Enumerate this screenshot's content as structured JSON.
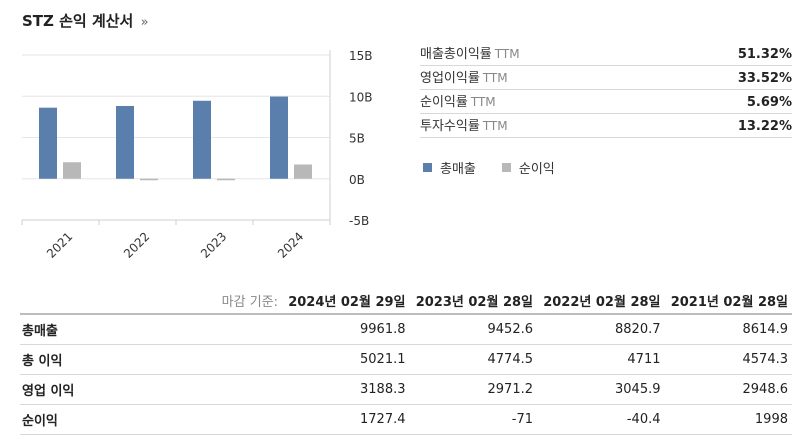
{
  "header": {
    "title": "STZ 손익 계산서",
    "chevron": "»"
  },
  "ratios": [
    {
      "label": "매출총이익률",
      "suffix": "TTM",
      "value": "51.32%"
    },
    {
      "label": "영업이익률",
      "suffix": "TTM",
      "value": "33.52%"
    },
    {
      "label": "순이익률",
      "suffix": "TTM",
      "value": "5.69%"
    },
    {
      "label": "투자수익률",
      "suffix": "TTM",
      "value": "13.22%"
    }
  ],
  "legend": [
    {
      "label": "총매출",
      "color": "#5b7fac"
    },
    {
      "label": "순이익",
      "color": "#b8b8b8"
    }
  ],
  "chart_data": {
    "type": "bar",
    "categories": [
      "2021",
      "2022",
      "2023",
      "2024"
    ],
    "series": [
      {
        "name": "총매출",
        "values": [
          8.6149,
          8.8207,
          9.4526,
          9.9618
        ],
        "color": "#5b7fac"
      },
      {
        "name": "순이익",
        "values": [
          1.998,
          -0.0404,
          -0.071,
          1.7274
        ],
        "color": "#b8b8b8"
      }
    ],
    "ylim": [
      -5,
      15
    ],
    "yticks": [
      15,
      10,
      5,
      0,
      -5
    ],
    "ytick_labels": [
      "15B",
      "10B",
      "5B",
      "0B",
      "-5B"
    ],
    "grid": true
  },
  "table": {
    "header_label": "마감 기준:",
    "columns": [
      "2024년 02월 29일",
      "2023년 02월 28일",
      "2022년 02월 28일",
      "2021년 02월 28일"
    ],
    "rows": [
      {
        "label": "총매출",
        "values": [
          "9961.8",
          "9452.6",
          "8820.7",
          "8614.9"
        ]
      },
      {
        "label": "총 이익",
        "values": [
          "5021.1",
          "4774.5",
          "4711",
          "4574.3"
        ]
      },
      {
        "label": "영업 이익",
        "values": [
          "3188.3",
          "2971.2",
          "3045.9",
          "2948.6"
        ]
      },
      {
        "label": "순이익",
        "values": [
          "1727.4",
          "-71",
          "-40.4",
          "1998"
        ]
      }
    ]
  }
}
